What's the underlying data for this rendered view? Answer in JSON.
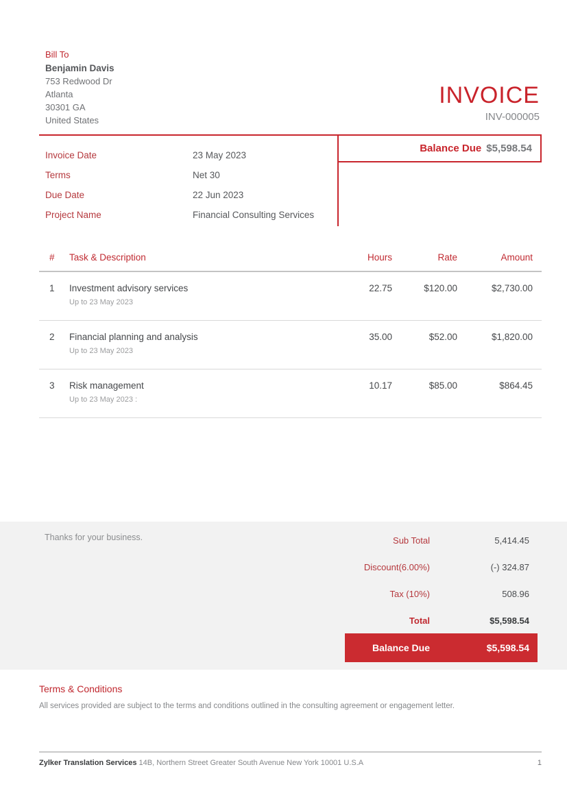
{
  "invoice": {
    "title": "INVOICE",
    "number": "INV-000005"
  },
  "bill_to": {
    "label": "Bill To",
    "name": "Benjamin Davis",
    "address_lines": [
      "753 Redwood Dr",
      "Atlanta",
      "30301 GA",
      "United States"
    ]
  },
  "balance_due_header": {
    "label": "Balance Due",
    "amount": "$5,598.54"
  },
  "details": {
    "rows": [
      {
        "label": "Invoice Date",
        "value": "23 May 2023"
      },
      {
        "label": "Terms",
        "value": "Net 30"
      },
      {
        "label": "Due Date",
        "value": "22 Jun 2023"
      },
      {
        "label": "Project Name",
        "value": "Financial Consulting Services"
      }
    ]
  },
  "table": {
    "headers": {
      "index": "#",
      "description": "Task & Description",
      "hours": "Hours",
      "rate": "Rate",
      "amount": "Amount"
    },
    "rows": [
      {
        "index": "1",
        "description": "Investment advisory services",
        "sub_description": "Up to 23 May 2023",
        "hours": "22.75",
        "rate": "$120.00",
        "amount": "$2,730.00"
      },
      {
        "index": "2",
        "description": "Financial planning and analysis",
        "sub_description": "Up to 23 May 2023",
        "hours": "35.00",
        "rate": "$52.00",
        "amount": "$1,820.00"
      },
      {
        "index": "3",
        "description": "Risk management",
        "sub_description": "Up to 23 May 2023 :",
        "hours": "10.17",
        "rate": "$85.00",
        "amount": "$864.45"
      }
    ]
  },
  "summary": {
    "thanks_note": "Thanks for your business.",
    "rows": [
      {
        "label": "Sub Total",
        "value": "5,414.45"
      },
      {
        "label": "Discount(6.00%)",
        "value": "(-) 324.87"
      },
      {
        "label": "Tax (10%)",
        "value": "508.96"
      },
      {
        "label": "Total",
        "value": "$5,598.54"
      }
    ],
    "balance_due": {
      "label": "Balance Due",
      "value": "$5,598.54"
    }
  },
  "terms": {
    "heading": "Terms & Conditions",
    "body": "All services provided are subject to the terms and conditions outlined in the consulting agreement or engagement letter."
  },
  "footer": {
    "company": "Zylker Translation Services",
    "address": "14B, Northern Street Greater South Avenue New York 10001  U.S.A",
    "page_number": "1"
  },
  "colors": {
    "accent_red": "#c8252c",
    "label_red": "#b5383d",
    "balance_fill": "#cb2b30",
    "dark_text": "#46484b",
    "gray_text": "#77797c",
    "light_gray_text": "#9b9c9e",
    "summary_band_bg": "#f2f2f2"
  }
}
